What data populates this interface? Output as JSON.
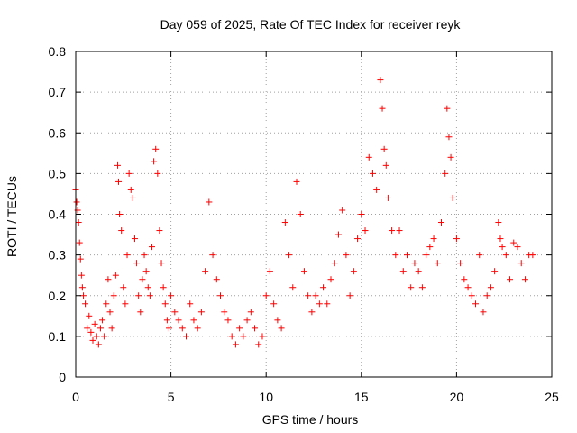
{
  "chart_data": {
    "type": "scatter",
    "title": "Day 059 of 2025, Rate Of TEC Index for receiver reyk",
    "xlabel": "GPS time / hours",
    "ylabel": "ROTI / TECUs",
    "xlim": [
      0,
      25
    ],
    "ylim": [
      0,
      0.8
    ],
    "xticks": [
      "0",
      "5",
      "10",
      "15",
      "20",
      "25"
    ],
    "yticks": [
      "0",
      "0.1",
      "0.2",
      "0.3",
      "0.4",
      "0.5",
      "0.6",
      "0.7",
      "0.8"
    ],
    "grid": true,
    "marker": "plus",
    "color": "#ff0000",
    "series": [
      {
        "x": [
          0.0,
          0.05,
          0.1,
          0.15,
          0.2,
          0.25,
          0.3,
          0.35,
          0.4,
          0.5,
          0.6,
          0.7,
          0.8,
          0.9,
          1.0,
          1.1,
          1.2,
          1.3,
          1.4,
          1.5,
          1.6,
          1.7,
          1.8,
          1.9,
          2.0,
          2.1,
          2.2,
          2.25,
          2.3,
          2.4,
          2.5,
          2.6,
          2.7,
          2.8,
          2.9,
          3.0,
          3.1,
          3.2,
          3.3,
          3.4,
          3.5,
          3.6,
          3.7,
          3.8,
          3.9,
          4.0,
          4.1,
          4.2,
          4.3,
          4.4,
          4.5,
          4.6,
          4.7,
          4.8,
          4.9,
          5.0,
          5.2,
          5.4,
          5.6,
          5.8,
          6.0,
          6.2,
          6.4,
          6.6,
          6.8,
          7.0,
          7.2,
          7.4,
          7.6,
          7.8,
          8.0,
          8.2,
          8.4,
          8.6,
          8.8,
          9.0,
          9.2,
          9.4,
          9.6,
          9.8,
          10.0,
          10.2,
          10.4,
          10.6,
          10.8,
          11.0,
          11.2,
          11.4,
          11.6,
          11.8,
          12.0,
          12.2,
          12.4,
          12.6,
          12.8,
          13.0,
          13.2,
          13.4,
          13.6,
          13.8,
          14.0,
          14.2,
          14.4,
          14.6,
          14.8,
          15.0,
          15.2,
          15.4,
          15.6,
          15.8,
          16.0,
          16.1,
          16.2,
          16.3,
          16.4,
          16.6,
          16.8,
          17.0,
          17.2,
          17.4,
          17.6,
          17.8,
          18.0,
          18.2,
          18.4,
          18.6,
          18.8,
          19.0,
          19.2,
          19.4,
          19.5,
          19.6,
          19.7,
          19.8,
          20.0,
          20.2,
          20.4,
          20.6,
          20.8,
          21.0,
          21.2,
          21.4,
          21.6,
          21.8,
          22.0,
          22.2,
          22.3,
          22.4,
          22.6,
          22.8,
          23.0,
          23.2,
          23.4,
          23.6,
          23.8,
          24.0
        ],
        "y": [
          0.46,
          0.43,
          0.41,
          0.38,
          0.33,
          0.29,
          0.25,
          0.22,
          0.2,
          0.18,
          0.12,
          0.15,
          0.11,
          0.09,
          0.13,
          0.1,
          0.08,
          0.12,
          0.14,
          0.1,
          0.18,
          0.24,
          0.16,
          0.12,
          0.2,
          0.25,
          0.52,
          0.48,
          0.4,
          0.36,
          0.22,
          0.18,
          0.3,
          0.5,
          0.46,
          0.44,
          0.34,
          0.28,
          0.2,
          0.16,
          0.24,
          0.3,
          0.26,
          0.22,
          0.2,
          0.32,
          0.53,
          0.56,
          0.5,
          0.36,
          0.28,
          0.22,
          0.18,
          0.14,
          0.12,
          0.2,
          0.16,
          0.14,
          0.12,
          0.1,
          0.18,
          0.14,
          0.12,
          0.16,
          0.26,
          0.43,
          0.3,
          0.24,
          0.2,
          0.16,
          0.14,
          0.1,
          0.08,
          0.12,
          0.1,
          0.14,
          0.16,
          0.12,
          0.08,
          0.1,
          0.2,
          0.26,
          0.18,
          0.14,
          0.12,
          0.38,
          0.3,
          0.22,
          0.48,
          0.4,
          0.26,
          0.2,
          0.16,
          0.2,
          0.18,
          0.22,
          0.18,
          0.24,
          0.28,
          0.35,
          0.41,
          0.3,
          0.2,
          0.26,
          0.34,
          0.4,
          0.36,
          0.54,
          0.5,
          0.46,
          0.73,
          0.66,
          0.56,
          0.52,
          0.44,
          0.36,
          0.3,
          0.36,
          0.26,
          0.3,
          0.22,
          0.28,
          0.26,
          0.22,
          0.3,
          0.32,
          0.34,
          0.28,
          0.38,
          0.5,
          0.66,
          0.59,
          0.54,
          0.44,
          0.34,
          0.28,
          0.24,
          0.22,
          0.2,
          0.18,
          0.3,
          0.16,
          0.2,
          0.22,
          0.26,
          0.38,
          0.34,
          0.32,
          0.3,
          0.24,
          0.33,
          0.32,
          0.28,
          0.24,
          0.3,
          0.3
        ]
      }
    ]
  }
}
